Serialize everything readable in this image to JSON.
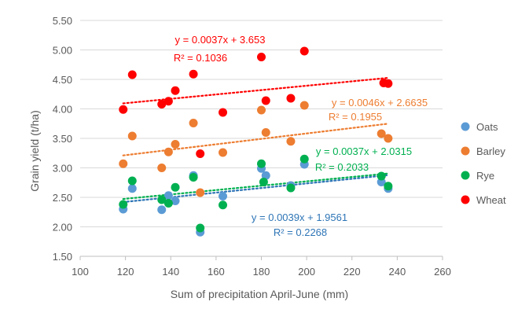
{
  "chart_data": {
    "type": "scatter",
    "xlabel": "Sum of precipitation April-June (mm)",
    "ylabel": "Grain yield (t/ha)",
    "xlim": [
      100,
      260
    ],
    "ylim": [
      1.5,
      5.5
    ],
    "xticks": [
      "100",
      "120",
      "140",
      "160",
      "180",
      "200",
      "220",
      "240",
      "260"
    ],
    "yticks": [
      "1.50",
      "2.00",
      "2.50",
      "3.00",
      "3.50",
      "4.00",
      "4.50",
      "5.00",
      "5.50"
    ],
    "grid": "horizontal",
    "legend_position": "right",
    "series": [
      {
        "name": "Oats",
        "color": "#5b9bd5",
        "trend_color": "#2e75b6",
        "x": [
          119,
          123,
          136,
          139,
          142,
          150,
          153,
          163,
          180,
          182,
          193,
          199,
          233,
          236
        ],
        "y": [
          2.3,
          2.65,
          2.29,
          2.53,
          2.44,
          2.87,
          1.91,
          2.52,
          2.99,
          2.87,
          2.7,
          3.06,
          2.76,
          2.65
        ],
        "trend": {
          "slope": 0.0039,
          "intercept": 1.9561,
          "x_range": [
            119,
            236
          ]
        },
        "equation": "y = 0.0039x + 1.9561",
        "r2": "R² = 0.2268"
      },
      {
        "name": "Barley",
        "color": "#ed7d31",
        "trend_color": "#ed7d31",
        "x": [
          119,
          123,
          136,
          139,
          142,
          150,
          153,
          163,
          180,
          182,
          193,
          199,
          233,
          236
        ],
        "y": [
          3.07,
          3.54,
          3.0,
          3.27,
          3.4,
          3.76,
          2.58,
          3.26,
          3.98,
          3.6,
          3.45,
          4.06,
          3.58,
          3.5
        ],
        "trend": {
          "slope": 0.0046,
          "intercept": 2.6635,
          "x_range": [
            119,
            236
          ]
        },
        "equation": "y = 0.0046x + 2.6635",
        "r2": "R² = 0.1955"
      },
      {
        "name": "Rye",
        "color": "#00b050",
        "trend_color": "#00b050",
        "x": [
          119,
          123,
          136,
          139,
          142,
          150,
          153,
          163,
          180,
          181,
          193,
          199,
          233,
          236
        ],
        "y": [
          2.38,
          2.78,
          2.46,
          2.4,
          2.67,
          2.84,
          1.98,
          2.37,
          3.07,
          2.76,
          2.66,
          3.15,
          2.86,
          2.69
        ],
        "trend": {
          "slope": 0.0037,
          "intercept": 2.0315,
          "x_range": [
            119,
            236
          ]
        },
        "equation": "y = 0.0037x + 2.0315",
        "r2": "R² = 0.2033"
      },
      {
        "name": "Wheat",
        "color": "#ff0000",
        "trend_color": "#ff0000",
        "x": [
          119,
          123,
          136,
          139,
          142,
          150,
          153,
          163,
          180,
          182,
          193,
          199,
          234,
          236
        ],
        "y": [
          3.99,
          4.58,
          4.08,
          4.13,
          4.31,
          4.59,
          3.24,
          3.94,
          4.88,
          4.14,
          4.18,
          4.98,
          4.44,
          4.43
        ],
        "trend": {
          "slope": 0.0037,
          "intercept": 3.653,
          "x_range": [
            119,
            236
          ]
        },
        "equation": "y = 0.0037x + 3.653",
        "r2": "R² = 0.1036"
      }
    ]
  }
}
